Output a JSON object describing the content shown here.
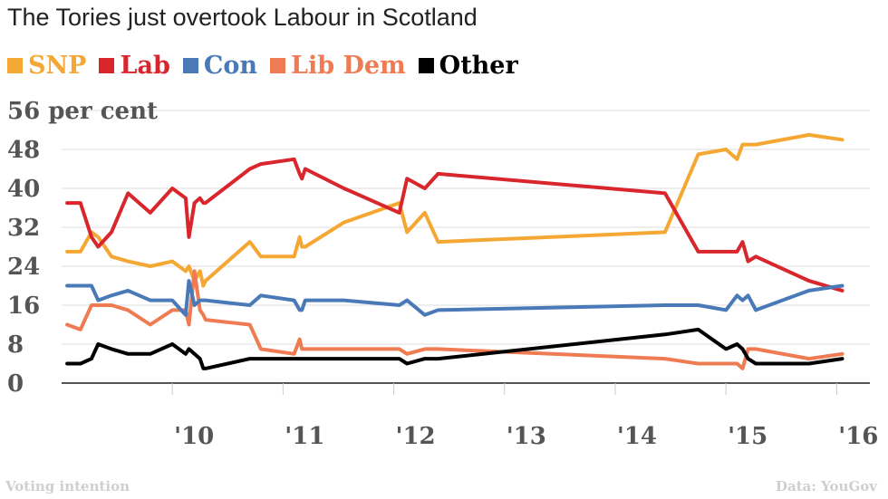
{
  "header": {
    "title": "The Tories just overtook Labour in Scotland"
  },
  "footer": {
    "left": "Voting intention",
    "right": "Data: YouGov"
  },
  "chart_data": {
    "type": "line",
    "title": "The Tories just overtook Labour in Scotland",
    "ylabel": "per cent",
    "ylim": [
      0,
      56
    ],
    "yticks": [
      0,
      8,
      16,
      24,
      32,
      40,
      48,
      56
    ],
    "ytick_labels": [
      "0",
      "8",
      "16",
      "24",
      "32",
      "40",
      "48",
      "56 per cent"
    ],
    "xlim": [
      2009.0,
      2016.3
    ],
    "xticks": [
      2010,
      2011,
      2012,
      2013,
      2014,
      2015,
      2016
    ],
    "xtick_labels": [
      "'10",
      "'11",
      "'12",
      "'13",
      "'14",
      "'15",
      "'16"
    ],
    "grid": true,
    "legend_position": "top",
    "x": [
      2009.05,
      2009.17,
      2009.27,
      2009.33,
      2009.45,
      2009.6,
      2009.8,
      2010.0,
      2010.12,
      2010.15,
      2010.2,
      2010.25,
      2010.28,
      2010.3,
      2010.7,
      2010.8,
      2011.1,
      2011.15,
      2011.17,
      2011.2,
      2011.55,
      2012.05,
      2012.12,
      2012.28,
      2012.4,
      2014.45,
      2014.75,
      2015.0,
      2015.1,
      2015.15,
      2015.2,
      2015.27,
      2015.75,
      2016.05
    ],
    "series": [
      {
        "name": "SNP",
        "color": "#f5a733",
        "values": [
          27,
          27,
          31,
          30,
          26,
          25,
          24,
          25,
          23,
          24,
          21,
          23,
          20,
          21,
          29,
          26,
          26,
          30,
          28,
          28,
          33,
          37,
          31,
          35,
          29,
          31,
          47,
          48,
          46,
          49,
          49,
          49,
          51,
          50
        ]
      },
      {
        "name": "Lab",
        "color": "#d9262d",
        "values": [
          37,
          37,
          30,
          28,
          31,
          39,
          35,
          40,
          38,
          30,
          37,
          38,
          37,
          37,
          44,
          45,
          46,
          43,
          42,
          44,
          40,
          35,
          42,
          40,
          43,
          39,
          27,
          27,
          27,
          29,
          25,
          26,
          21,
          19
        ]
      },
      {
        "name": "Con",
        "color": "#4a79b8",
        "values": [
          20,
          20,
          20,
          17,
          18,
          19,
          17,
          17,
          14,
          21,
          16,
          17,
          17,
          17,
          16,
          18,
          17,
          15,
          15,
          17,
          17,
          16,
          17,
          14,
          15,
          16,
          16,
          15,
          18,
          17,
          18,
          15,
          19,
          20
        ]
      },
      {
        "name": "Lib Dem",
        "color": "#ef7b52",
        "values": [
          12,
          11,
          16,
          16,
          16,
          15,
          12,
          15,
          15,
          12,
          23,
          15,
          14,
          13,
          12,
          7,
          6,
          9,
          7,
          7,
          7,
          7,
          6,
          7,
          7,
          5,
          4,
          4,
          4,
          3,
          7,
          7,
          5,
          6
        ]
      },
      {
        "name": "Other",
        "color": "#000000",
        "values": [
          4,
          4,
          5,
          8,
          7,
          6,
          6,
          8,
          6,
          7,
          6,
          5,
          3,
          3,
          5,
          5,
          5,
          5,
          5,
          5,
          5,
          5,
          4,
          5,
          5,
          10,
          11,
          7,
          8,
          7,
          5,
          4,
          4,
          5
        ]
      }
    ]
  }
}
